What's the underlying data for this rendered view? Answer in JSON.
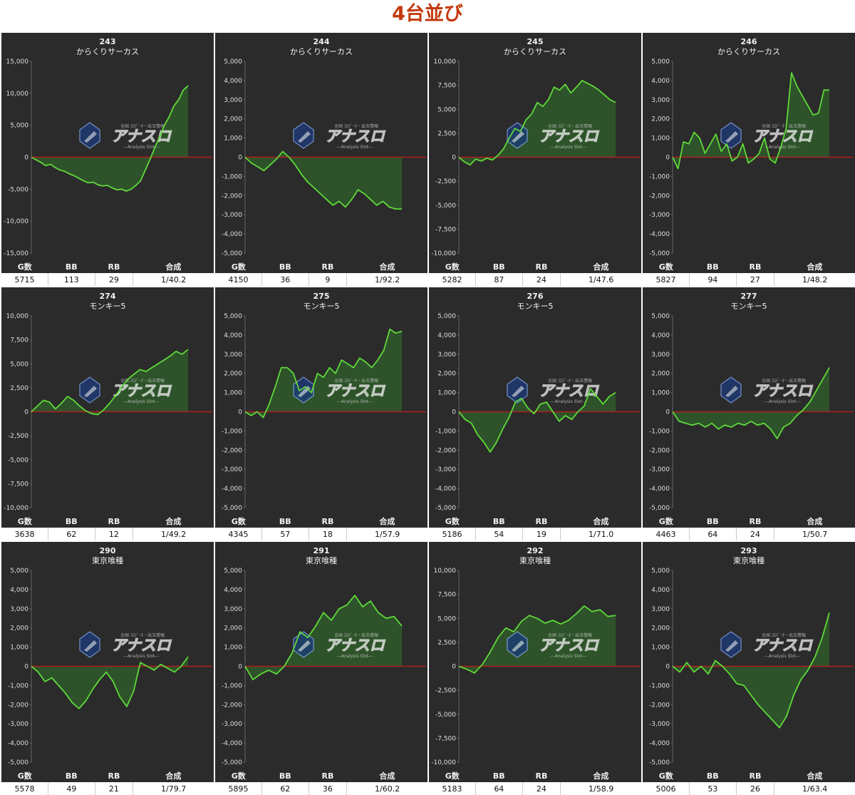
{
  "page_title": "4台並び",
  "table_headers": [
    "G数",
    "BB",
    "RB",
    "合成"
  ],
  "watermark": {
    "logo": "アナスロ",
    "tagline": "---Analysis Slot---",
    "caption": "全国 ｽﾛﾃﾞｰﾀ・出玉情報"
  },
  "colors": {
    "line": "#5fd93a",
    "fill": "#2f5a2a",
    "zero_line": "#b01e1e",
    "panel_bg": "#2b2b2b",
    "title": "#c33a0c"
  },
  "chart_data": [
    {
      "type": "line",
      "machine_no": "243",
      "machine_name": "からくりサーカス",
      "ylim": [
        -15000,
        15000
      ],
      "yticks": [
        -15000,
        -10000,
        -5000,
        0,
        5000,
        10000,
        15000
      ],
      "values": [
        0,
        -400,
        -800,
        -1300,
        -1100,
        -1600,
        -2000,
        -2200,
        -2600,
        -2900,
        -3300,
        -3700,
        -4000,
        -3900,
        -4300,
        -4500,
        -4400,
        -4800,
        -5100,
        -5000,
        -5300,
        -5000,
        -4400,
        -3700,
        -2000,
        -300,
        1500,
        3200,
        5000,
        6300,
        8000,
        9000,
        10500,
        11200
      ],
      "stats": {
        "games": "5715",
        "bb": "113",
        "rb": "29",
        "combined": "1/40.2"
      }
    },
    {
      "type": "line",
      "machine_no": "244",
      "machine_name": "からくりサーカス",
      "ylim": [
        -5000,
        5000
      ],
      "yticks": [
        -5000,
        -4000,
        -3000,
        -2000,
        -1000,
        0,
        1000,
        2000,
        3000,
        4000,
        5000
      ],
      "values": [
        0,
        -300,
        -500,
        -700,
        -400,
        -100,
        300,
        0,
        -400,
        -900,
        -1300,
        -1600,
        -1900,
        -2200,
        -2500,
        -2300,
        -2600,
        -2200,
        -1700,
        -1900,
        -2200,
        -2500,
        -2300,
        -2600,
        -2700,
        -2700
      ],
      "stats": {
        "games": "4150",
        "bb": "36",
        "rb": "9",
        "combined": "1/92.2"
      }
    },
    {
      "type": "line",
      "machine_no": "245",
      "machine_name": "からくりサーカス",
      "ylim": [
        -10000,
        10000
      ],
      "yticks": [
        -10000,
        -7500,
        -5000,
        -2500,
        0,
        2500,
        5000,
        7500,
        10000
      ],
      "values": [
        0,
        -500,
        -800,
        -200,
        -400,
        -100,
        -300,
        200,
        900,
        2000,
        3000,
        2700,
        3900,
        4500,
        5700,
        5300,
        6000,
        7300,
        7000,
        7600,
        6700,
        7300,
        8000,
        7700,
        7400,
        7000,
        6500,
        6000,
        5700
      ],
      "stats": {
        "games": "5282",
        "bb": "87",
        "rb": "24",
        "combined": "1/47.6"
      }
    },
    {
      "type": "line",
      "machine_no": "246",
      "machine_name": "からくりサーカス",
      "ylim": [
        -5000,
        5000
      ],
      "yticks": [
        -5000,
        -4000,
        -3000,
        -2000,
        -1000,
        0,
        1000,
        2000,
        3000,
        4000,
        5000
      ],
      "values": [
        0,
        -600,
        800,
        700,
        1300,
        1000,
        200,
        700,
        1200,
        300,
        700,
        -200,
        0,
        700,
        -300,
        -100,
        200,
        1000,
        -100,
        -300,
        500,
        1500,
        4400,
        3700,
        3200,
        2700,
        2200,
        2300,
        3500,
        3500
      ],
      "stats": {
        "games": "5827",
        "bb": "94",
        "rb": "27",
        "combined": "1/48.2"
      }
    },
    {
      "type": "line",
      "machine_no": "274",
      "machine_name": "モンキー5",
      "ylim": [
        -10000,
        10000
      ],
      "yticks": [
        -10000,
        -7500,
        -5000,
        -2500,
        0,
        2500,
        5000,
        7500,
        10000
      ],
      "values": [
        0,
        600,
        1200,
        1000,
        300,
        900,
        1600,
        1200,
        600,
        100,
        -200,
        -300,
        200,
        900,
        1700,
        2600,
        3400,
        3900,
        4400,
        4200,
        4600,
        5000,
        5400,
        5800,
        6300,
        6000,
        6500
      ],
      "stats": {
        "games": "3638",
        "bb": "62",
        "rb": "12",
        "combined": "1/49.2"
      }
    },
    {
      "type": "line",
      "machine_no": "275",
      "machine_name": "モンキー5",
      "ylim": [
        -5000,
        5000
      ],
      "yticks": [
        -5000,
        -4000,
        -3000,
        -2000,
        -1000,
        0,
        1000,
        2000,
        3000,
        4000,
        5000
      ],
      "values": [
        0,
        -200,
        0,
        -300,
        400,
        1300,
        2300,
        2300,
        2000,
        1100,
        1300,
        1000,
        2000,
        1800,
        2300,
        2000,
        2700,
        2500,
        2300,
        2800,
        2600,
        2300,
        2700,
        3200,
        4300,
        4100,
        4200
      ],
      "stats": {
        "games": "4345",
        "bb": "57",
        "rb": "18",
        "combined": "1/57.9"
      }
    },
    {
      "type": "line",
      "machine_no": "276",
      "machine_name": "モンキー5",
      "ylim": [
        -5000,
        5000
      ],
      "yticks": [
        -5000,
        -4000,
        -3000,
        -2000,
        -1000,
        0,
        1000,
        2000,
        3000,
        4000,
        5000
      ],
      "values": [
        0,
        -400,
        -600,
        -1200,
        -1600,
        -2100,
        -1600,
        -900,
        -300,
        500,
        700,
        200,
        -100,
        400,
        500,
        0,
        -500,
        -200,
        -400,
        0,
        300,
        1200,
        800,
        400,
        800,
        1000
      ],
      "stats": {
        "games": "5186",
        "bb": "54",
        "rb": "19",
        "combined": "1/71.0"
      }
    },
    {
      "type": "line",
      "machine_no": "277",
      "machine_name": "モンキー5",
      "ylim": [
        -5000,
        5000
      ],
      "yticks": [
        -5000,
        -4000,
        -3000,
        -2000,
        -1000,
        0,
        1000,
        2000,
        3000,
        4000,
        5000
      ],
      "values": [
        0,
        -500,
        -600,
        -700,
        -600,
        -800,
        -600,
        -900,
        -700,
        -800,
        -600,
        -700,
        -500,
        -700,
        -600,
        -900,
        -1400,
        -800,
        -600,
        -200,
        100,
        500,
        1100,
        1700,
        2300
      ],
      "stats": {
        "games": "4463",
        "bb": "64",
        "rb": "24",
        "combined": "1/50.7"
      }
    },
    {
      "type": "line",
      "machine_no": "290",
      "machine_name": "東京喰種",
      "ylim": [
        -5000,
        5000
      ],
      "yticks": [
        -5000,
        -4000,
        -3000,
        -2000,
        -1000,
        0,
        1000,
        2000,
        3000,
        4000,
        5000
      ],
      "values": [
        0,
        -300,
        -800,
        -600,
        -1000,
        -1400,
        -1900,
        -2200,
        -1800,
        -1200,
        -700,
        -300,
        -800,
        -1600,
        -2100,
        -1300,
        200,
        0,
        -200,
        100,
        -100,
        -300,
        0,
        500
      ],
      "stats": {
        "games": "5578",
        "bb": "49",
        "rb": "21",
        "combined": "1/79.7"
      }
    },
    {
      "type": "line",
      "machine_no": "291",
      "machine_name": "東京喰種",
      "ylim": [
        -5000,
        5000
      ],
      "yticks": [
        -5000,
        -4000,
        -3000,
        -2000,
        -1000,
        0,
        1000,
        2000,
        3000,
        4000,
        5000
      ],
      "values": [
        0,
        -700,
        -400,
        -200,
        -400,
        0,
        700,
        1800,
        1500,
        2100,
        2800,
        2400,
        3000,
        3200,
        3700,
        3100,
        3400,
        2800,
        2500,
        2600,
        2100
      ],
      "stats": {
        "games": "5895",
        "bb": "62",
        "rb": "36",
        "combined": "1/60.2"
      }
    },
    {
      "type": "line",
      "machine_no": "292",
      "machine_name": "東京喰種",
      "ylim": [
        -10000,
        10000
      ],
      "yticks": [
        -10000,
        -7500,
        -5000,
        -2500,
        0,
        2500,
        5000,
        7500,
        10000
      ],
      "values": [
        0,
        -300,
        -700,
        200,
        1500,
        3000,
        4000,
        3600,
        4700,
        5300,
        5000,
        4500,
        4800,
        4400,
        4800,
        5500,
        6300,
        5700,
        5900,
        5200,
        5300
      ],
      "stats": {
        "games": "5183",
        "bb": "64",
        "rb": "24",
        "combined": "1/58.9"
      }
    },
    {
      "type": "line",
      "machine_no": "293",
      "machine_name": "東京喰種",
      "ylim": [
        -5000,
        5000
      ],
      "yticks": [
        -5000,
        -4000,
        -3000,
        -2000,
        -1000,
        0,
        1000,
        2000,
        3000,
        4000,
        5000
      ],
      "values": [
        0,
        -300,
        200,
        -300,
        0,
        -400,
        300,
        0,
        -400,
        -900,
        -1000,
        -1500,
        -2000,
        -2400,
        -2800,
        -3200,
        -2600,
        -1500,
        -700,
        -200,
        500,
        1500,
        2800
      ],
      "stats": {
        "games": "5006",
        "bb": "53",
        "rb": "26",
        "combined": "1/63.4"
      }
    }
  ]
}
